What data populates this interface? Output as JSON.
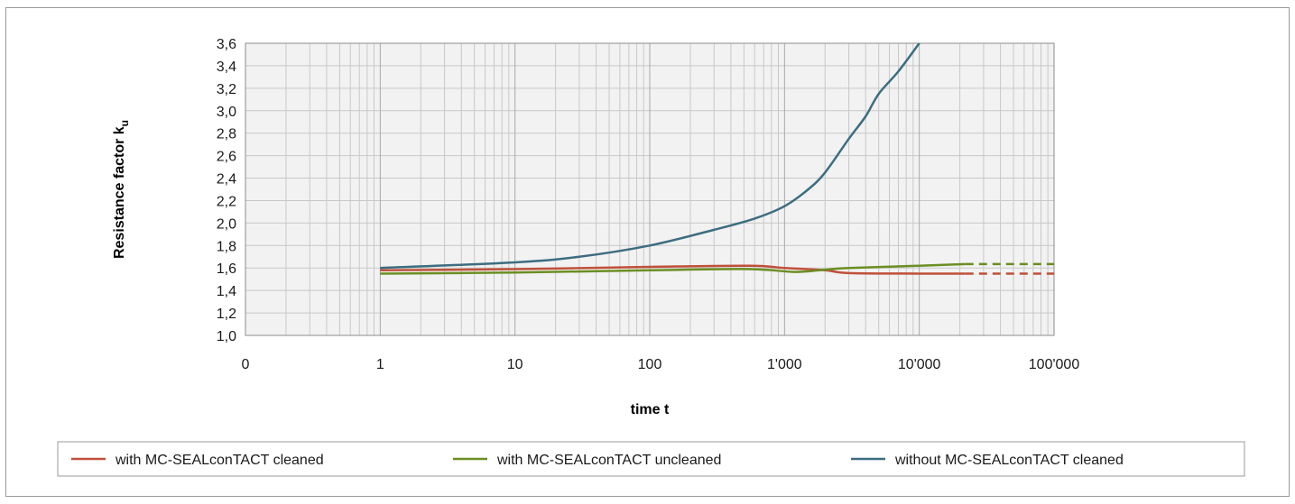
{
  "chart_data": {
    "type": "line",
    "title": "",
    "xlabel": "time t",
    "ylabel_main": "Resistance factor k",
    "ylabel_sub": "u",
    "x_scale": "log",
    "x_tick_labels": [
      "0",
      "1",
      "10",
      "100",
      "1'000",
      "10'000",
      "100'000"
    ],
    "y_tick_labels": [
      "1,0",
      "1,2",
      "1,4",
      "1,6",
      "1,8",
      "2,0",
      "2,2",
      "2,4",
      "2,6",
      "2,8",
      "3,0",
      "3,2",
      "3,4",
      "3,6"
    ],
    "ylim": [
      1.0,
      3.6
    ],
    "xlim": [
      0.1,
      100000
    ],
    "grid": true,
    "legend_position": "bottom",
    "series": [
      {
        "name": "with MC-SEALconTACT cleaned",
        "color": "#c0503a",
        "points": [
          [
            1,
            1.58
          ],
          [
            10,
            1.59
          ],
          [
            100,
            1.61
          ],
          [
            550,
            1.62
          ],
          [
            1000,
            1.6
          ],
          [
            2000,
            1.58
          ],
          [
            3000,
            1.555
          ],
          [
            10000,
            1.55
          ],
          [
            22000,
            1.55
          ]
        ],
        "dashed_extension": [
          [
            22000,
            1.55
          ],
          [
            100000,
            1.55
          ]
        ]
      },
      {
        "name": "with MC-SEALconTACT uncleaned",
        "color": "#6b8e23",
        "points": [
          [
            1,
            1.55
          ],
          [
            10,
            1.56
          ],
          [
            100,
            1.58
          ],
          [
            550,
            1.59
          ],
          [
            1200,
            1.565
          ],
          [
            2000,
            1.585
          ],
          [
            3000,
            1.6
          ],
          [
            10000,
            1.62
          ],
          [
            22000,
            1.635
          ]
        ],
        "dashed_extension": [
          [
            22000,
            1.635
          ],
          [
            100000,
            1.635
          ]
        ]
      },
      {
        "name": "without MC-SEALconTACT cleaned",
        "color": "#3d6d80",
        "points": [
          [
            1,
            1.6
          ],
          [
            10,
            1.65
          ],
          [
            30,
            1.7
          ],
          [
            100,
            1.8
          ],
          [
            300,
            1.94
          ],
          [
            600,
            2.04
          ],
          [
            1000,
            2.15
          ],
          [
            1500,
            2.3
          ],
          [
            2000,
            2.45
          ],
          [
            3000,
            2.75
          ],
          [
            4000,
            2.95
          ],
          [
            5000,
            3.15
          ],
          [
            7000,
            3.35
          ],
          [
            10000,
            3.6
          ]
        ]
      }
    ]
  }
}
